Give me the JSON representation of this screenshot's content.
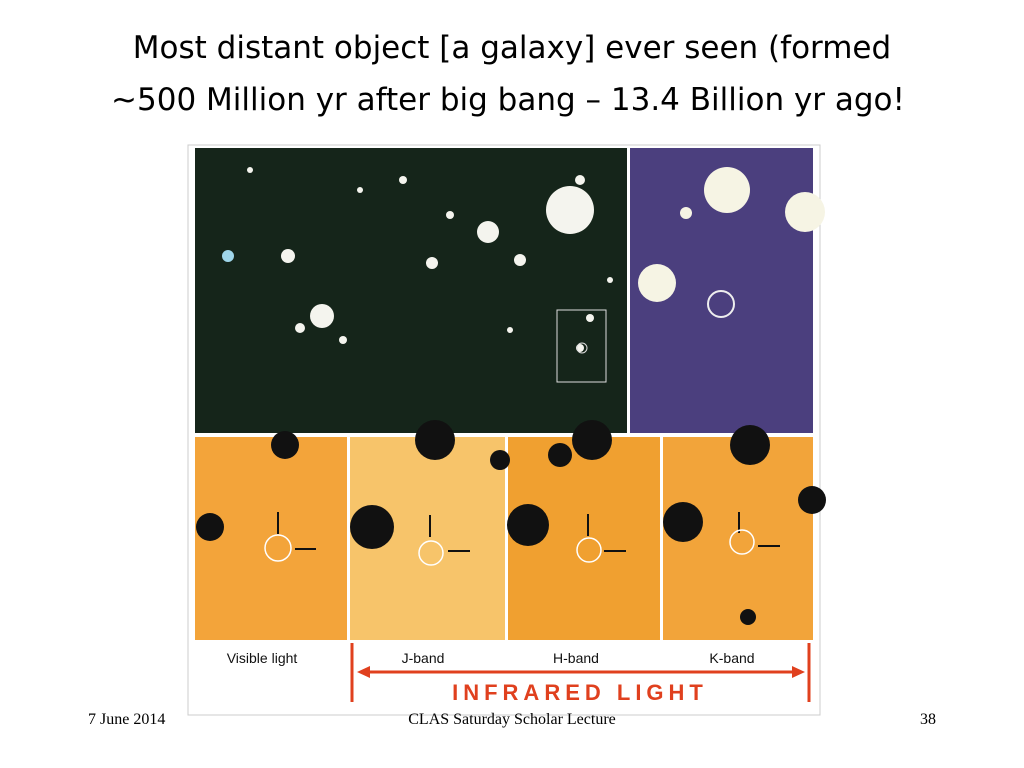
{
  "title": {
    "lines": [
      "Most distant object [a galaxy] ever seen (formed",
      "~500 Million yr after big bang – 13.4 Billion yr ago!"
    ]
  },
  "figure": {
    "panel_labels": [
      "Visible light",
      "J-band",
      "H-band",
      "K-band"
    ],
    "band_label": "INFRARED LIGHT"
  },
  "footer": {
    "date": "7 June 2014",
    "lecture": "CLAS Saturday Scholar Lecture",
    "page": "38"
  }
}
